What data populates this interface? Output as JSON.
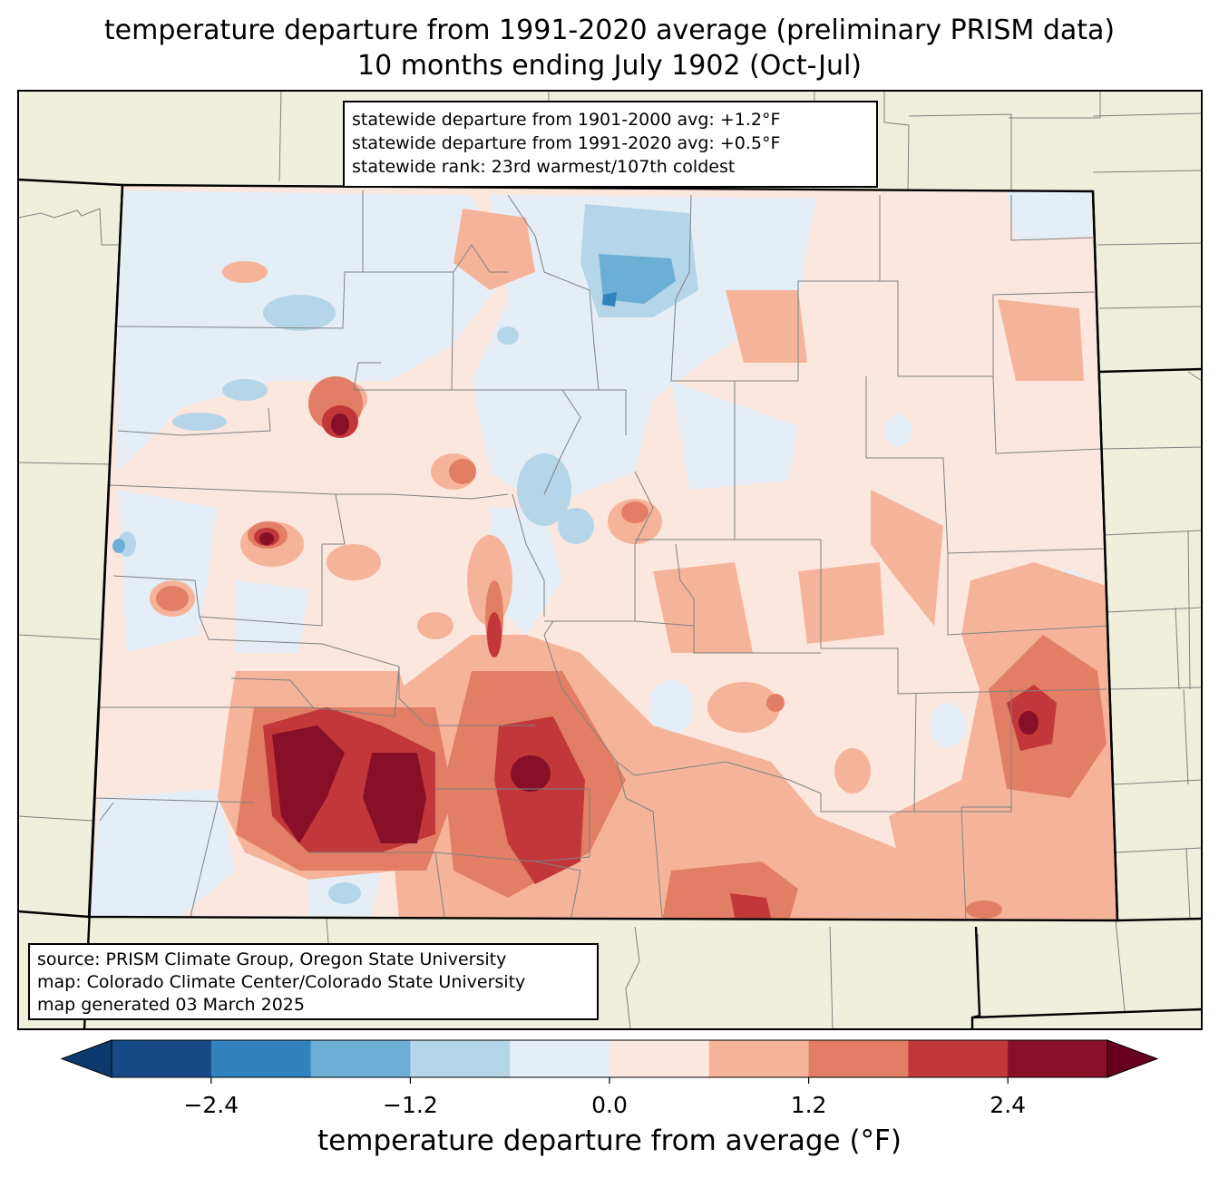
{
  "title": {
    "line1": "temperature departure from 1991-2020 average (preliminary PRISM data)",
    "line2": "10 months ending July 1902 (Oct-Jul)"
  },
  "stats": {
    "line1": "statewide departure from 1901-2000 avg: +1.2°F",
    "line2": "statewide departure from 1991-2020 avg: +0.5°F",
    "line3": "statewide rank: 23rd warmest/107th coldest"
  },
  "source": {
    "line1": "source: PRISM Climate Group, Oregon State University",
    "line2": "map: Colorado Climate Center/Colorado State University",
    "line3": "map generated 03 March 2025"
  },
  "colorbar": {
    "label": "temperature departure from average (°F)",
    "ticks": [
      "−2.4",
      "−1.2",
      "0.0",
      "1.2",
      "2.4"
    ],
    "tick_values": [
      -2.4,
      -1.2,
      0.0,
      1.2,
      2.4
    ],
    "levels": [
      -3.0,
      -2.4,
      -1.8,
      -1.2,
      -0.6,
      0.0,
      0.6,
      1.2,
      1.8,
      2.4,
      3.0
    ],
    "colors": [
      "#0b3b6e",
      "#154a87",
      "#3182bd",
      "#6baed6",
      "#b4d6e8",
      "#e5eef6",
      "#fbe7de",
      "#f5b49a",
      "#e27e66",
      "#c1373a",
      "#870f27",
      "#67001f"
    ]
  },
  "colors": {
    "land": "#efefdb",
    "state_border": "#000000",
    "county_border": "#808080"
  }
}
